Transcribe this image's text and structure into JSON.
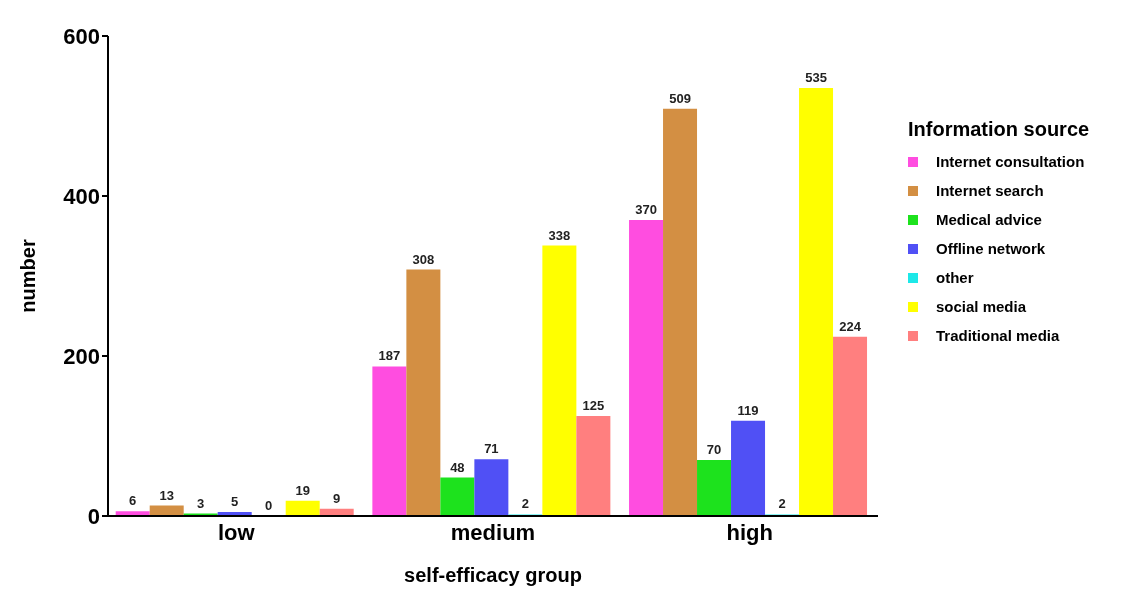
{
  "chart_data": {
    "type": "bar",
    "xlabel": "self-efficacy group",
    "ylabel": "number",
    "legend_title": "Information source",
    "categories": [
      "low",
      "medium",
      "high"
    ],
    "series": [
      {
        "name": "Internet consultation",
        "color": "#ff4de0",
        "values": [
          6,
          187,
          370
        ]
      },
      {
        "name": "Internet search",
        "color": "#d38f43",
        "values": [
          13,
          308,
          509
        ]
      },
      {
        "name": "Medical advice",
        "color": "#1de21d",
        "values": [
          3,
          48,
          70
        ]
      },
      {
        "name": "Offline network",
        "color": "#5050f5",
        "values": [
          5,
          71,
          119
        ]
      },
      {
        "name": "other",
        "color": "#1de8e8",
        "values": [
          0,
          2,
          2
        ]
      },
      {
        "name": "social media",
        "color": "#ffff00",
        "values": [
          19,
          338,
          535
        ]
      },
      {
        "name": "Traditional media",
        "color": "#ff7f7f",
        "values": [
          9,
          125,
          224
        ]
      }
    ],
    "ylim": [
      0,
      600
    ],
    "yticks": [
      0,
      200,
      400,
      600
    ],
    "grid": false,
    "legend": "right",
    "data_labels": true
  }
}
